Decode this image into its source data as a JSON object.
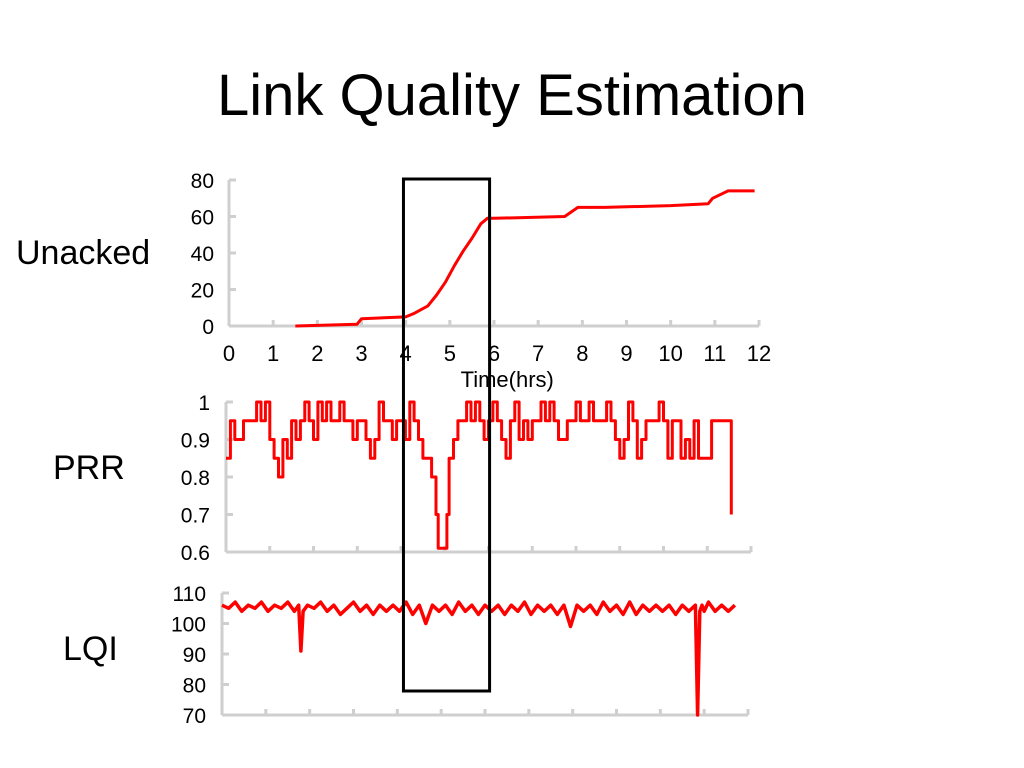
{
  "slide": {
    "title": "Link Quality Estimation"
  },
  "colors": {
    "series": "#ff0000",
    "axis": "#cfcfcf",
    "highlight_box": "#000000"
  },
  "chart_data": [
    {
      "type": "line",
      "row_label": "Unacked",
      "xlabel": "Time(hrs)",
      "ylabel": "",
      "xlim": [
        0,
        12
      ],
      "ylim": [
        0,
        80
      ],
      "xticks": [
        0,
        1,
        2,
        3,
        4,
        5,
        6,
        7,
        8,
        9,
        10,
        11,
        12
      ],
      "yticks": [
        0,
        20,
        40,
        60,
        80
      ],
      "grid": false,
      "series": [
        {
          "x": [
            1.5,
            2.9,
            3.0,
            4.0,
            4.2,
            4.5,
            4.7,
            4.9,
            5.1,
            5.3,
            5.5,
            5.7,
            5.85,
            6.0,
            7.6,
            7.9,
            8.5,
            10.0,
            10.85,
            10.95,
            11.3,
            11.9
          ],
          "y": [
            0,
            1,
            4,
            5,
            7,
            11,
            17,
            24,
            33,
            41,
            48,
            56,
            59,
            59,
            60,
            65,
            65,
            66,
            67,
            70,
            74,
            74
          ]
        }
      ]
    },
    {
      "type": "line",
      "row_label": "PRR",
      "xlim": [
        0,
        12
      ],
      "ylim": [
        0.6,
        1
      ],
      "yticks": [
        0.6,
        0.7,
        0.8,
        0.9,
        1
      ],
      "ytick_labels": [
        "0.6",
        "0.7",
        "0.8",
        "0.9",
        "1"
      ],
      "grid": false,
      "series": [
        {
          "x": [
            0.0,
            0.1,
            0.2,
            0.3,
            0.4,
            0.5,
            0.6,
            0.7,
            0.8,
            0.9,
            1.0,
            1.1,
            1.2,
            1.3,
            1.4,
            1.5,
            1.6,
            1.7,
            1.8,
            1.9,
            2.0,
            2.1,
            2.2,
            2.3,
            2.4,
            2.5,
            2.6,
            2.7,
            2.8,
            2.9,
            3.0,
            3.1,
            3.2,
            3.3,
            3.4,
            3.5,
            3.6,
            3.7,
            3.8,
            3.9,
            4.0,
            4.1,
            4.2,
            4.3,
            4.4,
            4.5,
            4.6,
            4.7,
            4.8,
            4.85,
            4.9,
            4.95,
            5.0,
            5.05,
            5.1,
            5.2,
            5.3,
            5.4,
            5.5,
            5.6,
            5.7,
            5.8,
            5.9,
            6.0,
            6.1,
            6.2,
            6.3,
            6.4,
            6.5,
            6.6,
            6.7,
            6.8,
            6.9,
            7.0,
            7.1,
            7.2,
            7.3,
            7.4,
            7.5,
            7.6,
            7.7,
            7.8,
            7.9,
            8.0,
            8.1,
            8.2,
            8.3,
            8.4,
            8.5,
            8.6,
            8.7,
            8.8,
            8.9,
            9.0,
            9.1,
            9.2,
            9.3,
            9.4,
            9.5,
            9.6,
            9.7,
            9.8,
            9.9,
            10.0,
            10.1,
            10.2,
            10.3,
            10.4,
            10.5,
            10.6,
            10.7,
            10.8,
            10.9,
            11.0,
            11.1,
            11.2,
            11.3,
            11.4,
            11.5,
            11.55
          ],
          "y": [
            0.85,
            0.95,
            0.9,
            0.9,
            0.95,
            0.95,
            0.95,
            1.0,
            0.95,
            1.0,
            0.9,
            0.85,
            0.8,
            0.9,
            0.85,
            0.95,
            0.9,
            0.95,
            1.0,
            0.95,
            0.9,
            1.0,
            0.95,
            1.0,
            0.95,
            0.95,
            1.0,
            0.95,
            0.95,
            0.9,
            0.95,
            0.95,
            0.9,
            0.85,
            0.9,
            1.0,
            0.95,
            0.95,
            0.9,
            0.95,
            0.95,
            0.9,
            1.0,
            0.95,
            0.9,
            0.85,
            0.85,
            0.8,
            0.7,
            0.61,
            0.61,
            0.61,
            0.61,
            0.7,
            0.85,
            0.9,
            0.95,
            0.95,
            1.0,
            0.95,
            1.0,
            0.95,
            0.9,
            0.95,
            1.0,
            0.95,
            0.9,
            0.85,
            0.95,
            1.0,
            0.9,
            0.95,
            0.9,
            0.95,
            0.95,
            1.0,
            0.95,
            1.0,
            0.95,
            0.9,
            0.9,
            0.95,
            0.95,
            1.0,
            0.95,
            0.95,
            1.0,
            0.95,
            0.95,
            0.95,
            1.0,
            0.95,
            0.9,
            0.85,
            0.9,
            1.0,
            0.95,
            0.85,
            0.9,
            0.95,
            0.95,
            0.95,
            1.0,
            0.95,
            0.85,
            0.95,
            0.95,
            0.85,
            0.9,
            0.85,
            0.95,
            0.85,
            0.85,
            0.85,
            0.95,
            0.95,
            0.95,
            0.95,
            0.95,
            0.7
          ]
        }
      ]
    },
    {
      "type": "line",
      "row_label": "LQI",
      "xlim": [
        0,
        12
      ],
      "ylim": [
        70,
        110
      ],
      "yticks": [
        70,
        80,
        90,
        100,
        110
      ],
      "grid": false,
      "series": [
        {
          "x": [
            0.0,
            0.15,
            0.3,
            0.45,
            0.6,
            0.75,
            0.9,
            1.05,
            1.2,
            1.35,
            1.5,
            1.65,
            1.75,
            1.8,
            1.85,
            1.95,
            2.1,
            2.25,
            2.4,
            2.55,
            2.7,
            2.85,
            3.0,
            3.15,
            3.3,
            3.45,
            3.6,
            3.75,
            3.9,
            4.05,
            4.2,
            4.35,
            4.5,
            4.65,
            4.8,
            4.95,
            5.1,
            5.25,
            5.4,
            5.55,
            5.7,
            5.85,
            6.0,
            6.15,
            6.3,
            6.45,
            6.6,
            6.75,
            6.9,
            7.05,
            7.2,
            7.35,
            7.5,
            7.65,
            7.8,
            7.95,
            8.1,
            8.25,
            8.4,
            8.55,
            8.7,
            8.85,
            9.0,
            9.15,
            9.3,
            9.45,
            9.6,
            9.75,
            9.9,
            10.05,
            10.2,
            10.35,
            10.5,
            10.65,
            10.8,
            10.85,
            10.9,
            10.95,
            11.0,
            11.1,
            11.25,
            11.4,
            11.55,
            11.7
          ],
          "y": [
            106,
            105,
            107,
            104,
            106,
            105,
            107,
            104,
            106,
            105,
            107,
            104,
            106,
            91,
            104,
            106,
            105,
            107,
            104,
            106,
            103,
            105,
            107,
            104,
            106,
            103,
            106,
            104,
            106,
            104,
            107,
            103,
            106,
            100,
            106,
            104,
            106,
            103,
            107,
            104,
            106,
            103,
            106,
            104,
            106,
            103,
            106,
            104,
            107,
            103,
            106,
            104,
            106,
            103,
            106,
            99,
            106,
            104,
            106,
            103,
            107,
            104,
            106,
            103,
            107,
            103,
            106,
            104,
            106,
            104,
            106,
            103,
            106,
            104,
            106,
            70,
            104,
            106,
            104,
            107,
            104,
            106,
            104,
            106
          ]
        }
      ]
    }
  ]
}
